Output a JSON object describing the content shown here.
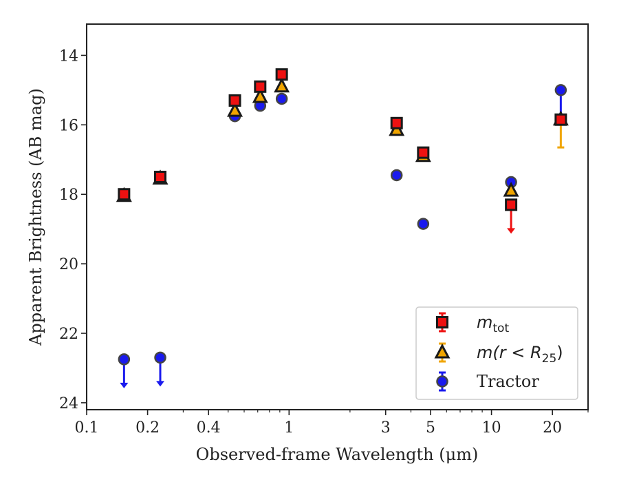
{
  "chart_data": {
    "type": "scatter",
    "xlabel": "Observed-frame Wavelength (μm)",
    "ylabel": "Apparent Brightness (AB mag)",
    "xscale": "log",
    "xlim": [
      0.1,
      30
    ],
    "ylim": [
      24.2,
      13.1
    ],
    "y_inverted": true,
    "xticks": [
      {
        "value": 0.1,
        "label": "0.1"
      },
      {
        "value": 0.2,
        "label": "0.2"
      },
      {
        "value": 0.4,
        "label": "0.4"
      },
      {
        "value": 1,
        "label": "1"
      },
      {
        "value": 3,
        "label": "3"
      },
      {
        "value": 5,
        "label": "5"
      },
      {
        "value": 10,
        "label": "10"
      },
      {
        "value": 20,
        "label": "20"
      }
    ],
    "yticks": [
      {
        "value": 14,
        "label": "14"
      },
      {
        "value": 16,
        "label": "16"
      },
      {
        "value": 18,
        "label": "18"
      },
      {
        "value": 20,
        "label": "20"
      },
      {
        "value": 22,
        "label": "22"
      },
      {
        "value": 24,
        "label": "24"
      }
    ],
    "legend_position": "lower-right",
    "series": [
      {
        "name": "m_tot",
        "marker": "square",
        "color": "#ee1111",
        "points": [
          {
            "x": 0.153,
            "y": 18.0
          },
          {
            "x": 0.231,
            "y": 17.5
          },
          {
            "x": 0.54,
            "y": 15.3
          },
          {
            "x": 0.72,
            "y": 14.9
          },
          {
            "x": 0.92,
            "y": 14.55
          },
          {
            "x": 3.4,
            "y": 15.95
          },
          {
            "x": 4.6,
            "y": 16.8
          },
          {
            "x": 12.5,
            "y": 18.3,
            "upper_limit": true
          },
          {
            "x": 22.0,
            "y": 15.85,
            "err": 0.05
          }
        ]
      },
      {
        "name": "m(r < R25)",
        "marker": "triangle",
        "color": "#f0a500",
        "points": [
          {
            "x": 0.153,
            "y": 18.05
          },
          {
            "x": 0.231,
            "y": 17.55
          },
          {
            "x": 0.54,
            "y": 15.6
          },
          {
            "x": 0.72,
            "y": 15.2
          },
          {
            "x": 0.92,
            "y": 14.9
          },
          {
            "x": 3.4,
            "y": 16.15
          },
          {
            "x": 4.6,
            "y": 16.9
          },
          {
            "x": 12.5,
            "y": 17.9
          },
          {
            "x": 22.0,
            "y": 15.85,
            "err_low": 0.05,
            "err_high": 0.8
          }
        ]
      },
      {
        "name": "Tractor",
        "marker": "circle",
        "color": "#1a1aee",
        "points": [
          {
            "x": 0.153,
            "y": 22.75,
            "upper_limit": true
          },
          {
            "x": 0.231,
            "y": 22.7,
            "upper_limit": true
          },
          {
            "x": 0.54,
            "y": 15.75
          },
          {
            "x": 0.72,
            "y": 15.45
          },
          {
            "x": 0.92,
            "y": 15.25
          },
          {
            "x": 3.4,
            "y": 17.45
          },
          {
            "x": 4.6,
            "y": 18.85
          },
          {
            "x": 12.5,
            "y": 17.65
          },
          {
            "x": 22.0,
            "y": 15.0,
            "err_high": 0.9
          }
        ]
      }
    ]
  },
  "legend": {
    "mtot_main": "m",
    "mtot_sub": "tot",
    "mr_label": "m(r < R",
    "mr_sub": "25",
    "mr_close": ")",
    "tractor_label": "Tractor"
  }
}
